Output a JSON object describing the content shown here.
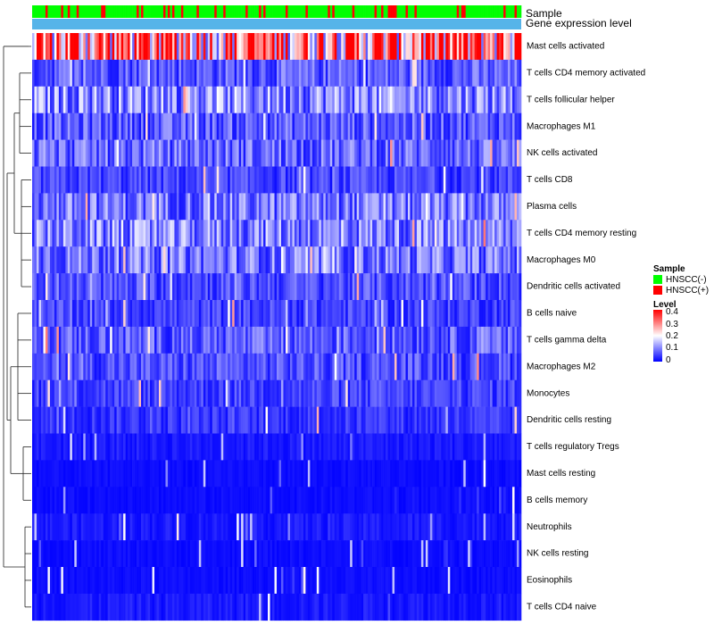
{
  "chart_data": {
    "type": "heatmap",
    "title": "",
    "annotation_rows": [
      "Sample",
      "Gene expression level"
    ],
    "rows": [
      {
        "name": "Mast cells activated",
        "mean": 0.3
      },
      {
        "name": "T cells CD4 memory activated",
        "mean": 0.07
      },
      {
        "name": "T cells follicular helper",
        "mean": 0.11
      },
      {
        "name": "Macrophages M1",
        "mean": 0.07
      },
      {
        "name": "NK cells activated",
        "mean": 0.08
      },
      {
        "name": "T cells CD8",
        "mean": 0.05
      },
      {
        "name": "Plasma cells",
        "mean": 0.09
      },
      {
        "name": "T cells CD4 memory resting",
        "mean": 0.1
      },
      {
        "name": "Macrophages M0",
        "mean": 0.09
      },
      {
        "name": "Dendritic cells activated",
        "mean": 0.06
      },
      {
        "name": "B cells naive",
        "mean": 0.05
      },
      {
        "name": "T cells gamma delta",
        "mean": 0.07
      },
      {
        "name": "Macrophages M2",
        "mean": 0.06
      },
      {
        "name": "Monocytes",
        "mean": 0.05
      },
      {
        "name": "Dendritic cells resting",
        "mean": 0.04
      },
      {
        "name": "T cells regulatory  Tregs",
        "mean": 0.02
      },
      {
        "name": "Mast cells resting",
        "mean": 0.01
      },
      {
        "name": "B cells memory",
        "mean": 0.01
      },
      {
        "name": "Neutrophils",
        "mean": 0.02
      },
      {
        "name": "NK cells resting",
        "mean": 0.01
      },
      {
        "name": "Eosinophils",
        "mean": 0.01
      },
      {
        "name": "T cells CD4 naive",
        "mean": 0.02
      }
    ],
    "n_samples": 220,
    "legend": {
      "sample": {
        "title": "Sample",
        "items": [
          {
            "label": "HNSCC(-)",
            "color": "#00ff00"
          },
          {
            "label": "HNSCC(+)",
            "color": "#ff0000"
          }
        ]
      },
      "level": {
        "title": "Level",
        "ticks": [
          "0.4",
          "0.3",
          "0.2",
          "0.1",
          "0"
        ],
        "range": [
          0,
          0.4
        ]
      }
    },
    "colors": {
      "low": "#0000ff",
      "mid": "#ffffff",
      "high": "#ff0000",
      "expression_bar": "#56b4e9",
      "negative": "#00ff00",
      "positive": "#ff0000"
    }
  }
}
